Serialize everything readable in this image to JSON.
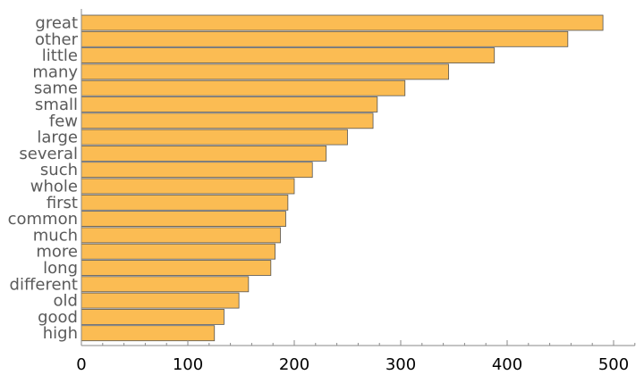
{
  "chart_data": {
    "type": "bar",
    "orientation": "horizontal",
    "title": "",
    "xlabel": "",
    "ylabel": "",
    "categories": [
      "great",
      "other",
      "little",
      "many",
      "same",
      "small",
      "few",
      "large",
      "several",
      "such",
      "whole",
      "first",
      "common",
      "much",
      "more",
      "long",
      "different",
      "old",
      "good",
      "high"
    ],
    "values": [
      490,
      457,
      388,
      345,
      304,
      278,
      274,
      250,
      230,
      217,
      200,
      194,
      192,
      187,
      182,
      178,
      157,
      148,
      134,
      125
    ],
    "xlim": [
      0,
      520
    ],
    "xticks": [
      0,
      100,
      200,
      300,
      400,
      500
    ],
    "xtick_labels": [
      "0",
      "100",
      "200",
      "300",
      "400",
      "500"
    ],
    "grid": false,
    "legend": "none",
    "bar_color": "#FBBC53",
    "bar_edge_color": "#555555"
  }
}
